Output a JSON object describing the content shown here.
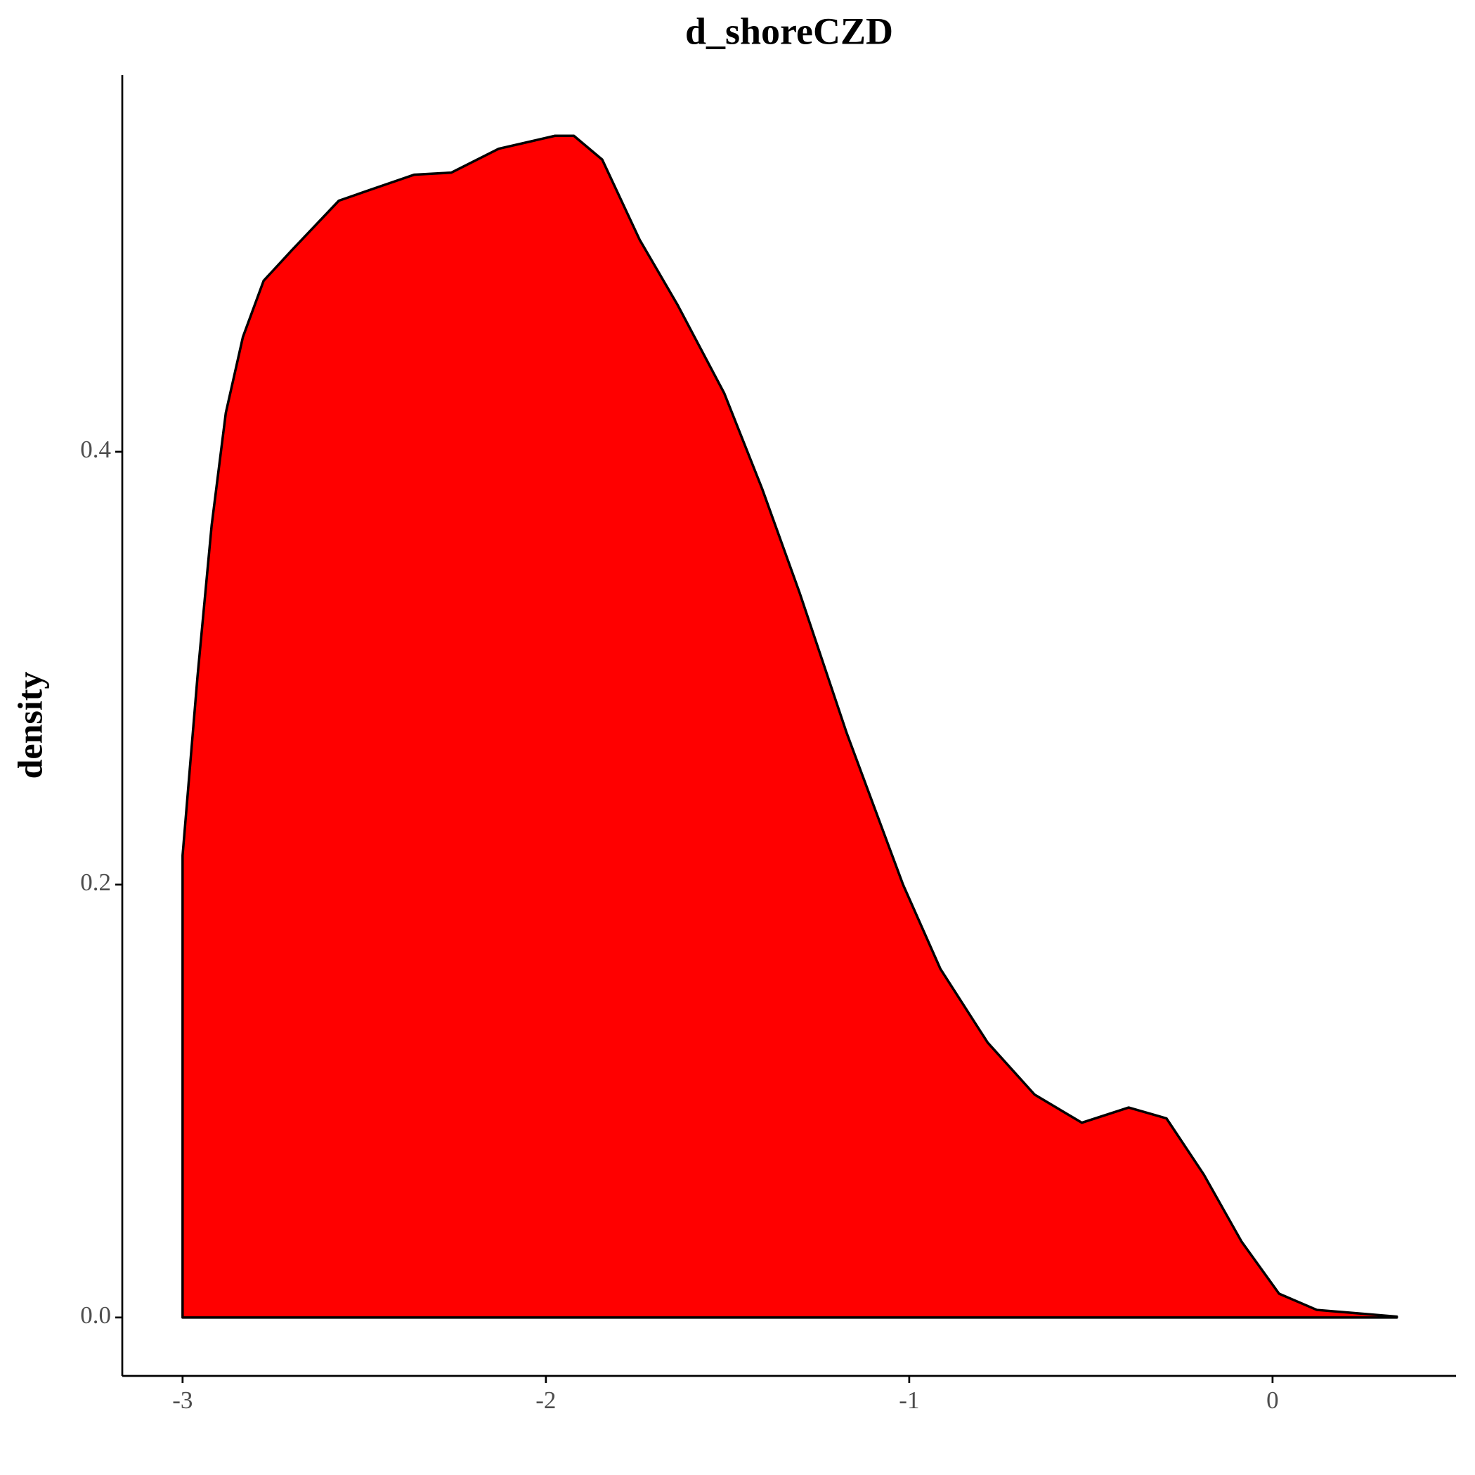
{
  "chart_data": {
    "type": "area",
    "title": "d_shoreCZD",
    "y_label": "density",
    "x": [
      -3.0,
      -2.959,
      -2.92,
      -2.881,
      -2.834,
      -2.777,
      -2.7,
      -2.57,
      -2.467,
      -2.363,
      -2.26,
      -2.13,
      -1.975,
      -1.923,
      -1.845,
      -1.742,
      -1.638,
      -1.509,
      -1.405,
      -1.302,
      -1.172,
      -1.017,
      -0.914,
      -0.784,
      -0.655,
      -0.525,
      -0.396,
      -0.292,
      -0.189,
      -0.085,
      0.018,
      0.122,
      0.342
    ],
    "values": [
      0.2135,
      0.296,
      0.366,
      0.418,
      0.453,
      0.479,
      0.493,
      0.516,
      0.522,
      0.528,
      0.529,
      0.54,
      0.546,
      0.546,
      0.535,
      0.498,
      0.468,
      0.427,
      0.383,
      0.335,
      0.27,
      0.2,
      0.161,
      0.127,
      0.103,
      0.09,
      0.097,
      0.092,
      0.066,
      0.035,
      0.011,
      0.0035,
      0.0004
    ],
    "color": "#ff0000",
    "line_color": "#000000",
    "xlim": [
      -3.166,
      0.505
    ],
    "ylim": [
      -0.027,
      0.574
    ],
    "xticks": [
      -3,
      -2,
      -1,
      0
    ],
    "yticks": [
      {
        "value": 0,
        "label": "0.0"
      },
      0.2,
      0.4
    ],
    "grid": false
  }
}
